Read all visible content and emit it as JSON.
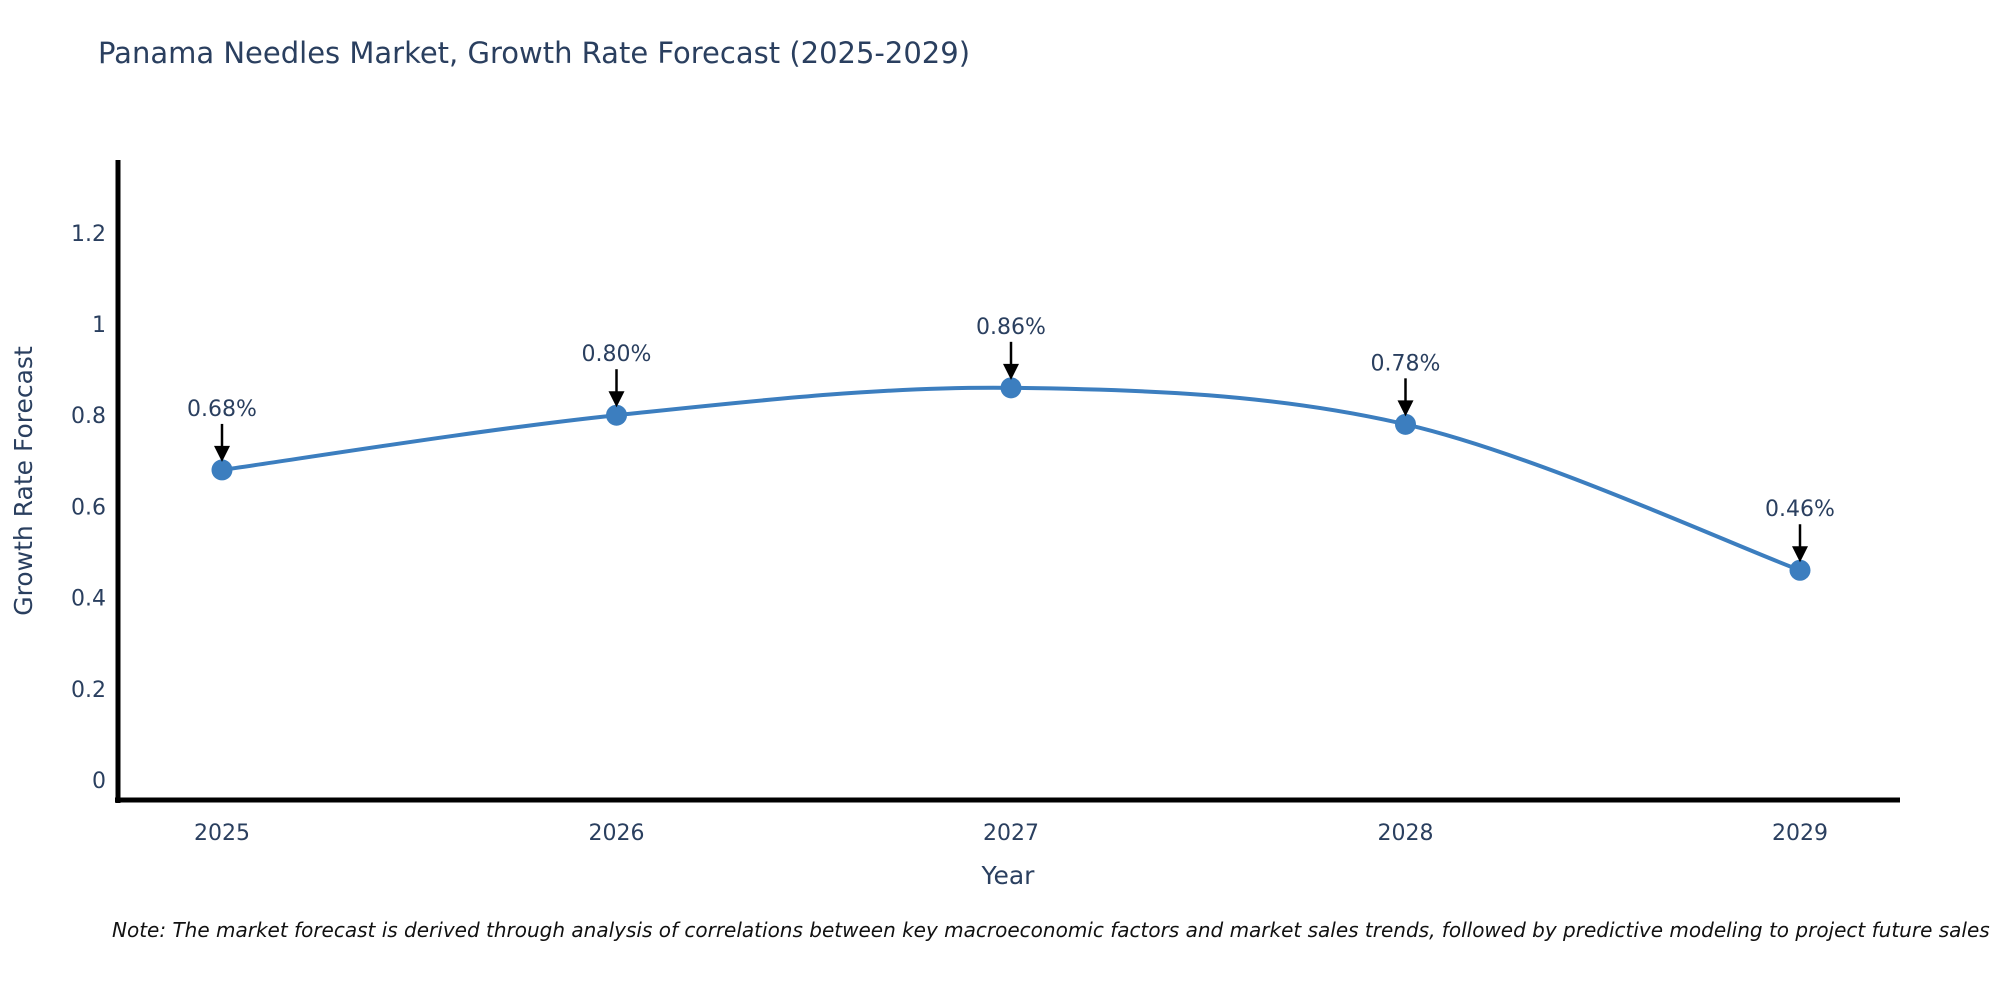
{
  "title": "Panama Needles Market, Growth Rate Forecast (2025-2029)",
  "note": "Note: The market forecast is derived through analysis of correlations between key macroeconomic factors and market sales trends, followed by predictive modeling to project future sales",
  "colors": {
    "line": "#3c7ebf",
    "marker": "#3c7ebf",
    "axis": "#000000",
    "arrow": "#000000",
    "text": "#2a3f5f",
    "background": "#ffffff"
  },
  "chart_data": {
    "type": "line",
    "title": "Panama Needles Market, Growth Rate Forecast (2025-2029)",
    "x": [
      "2025",
      "2026",
      "2027",
      "2028",
      "2029"
    ],
    "values": [
      0.68,
      0.8,
      0.86,
      0.78,
      0.46
    ],
    "point_labels": [
      "0.68%",
      "0.80%",
      "0.86%",
      "0.78%",
      "0.46%"
    ],
    "xlabel": "Year",
    "ylabel": "Growth Rate Forecast",
    "yticks": [
      0,
      0.2,
      0.4,
      0.6,
      0.8,
      1,
      1.2
    ],
    "ytick_labels": [
      "0",
      "0.2",
      "0.4",
      "0.6",
      "0.8",
      "1",
      "1.2"
    ],
    "ylim": [
      -0.045,
      1.36
    ],
    "grid": false,
    "legend": false,
    "line_shape": "spline",
    "markers": true,
    "annotations_arrow": true
  }
}
